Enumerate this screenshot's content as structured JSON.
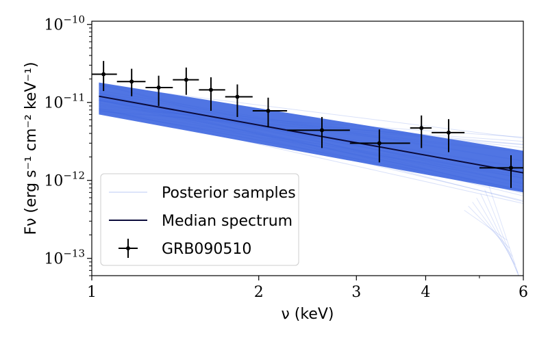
{
  "chart_data": {
    "type": "scatter",
    "title": "",
    "xlabel": "ν (keV)",
    "ylabel": "Fν (erg s⁻¹ cm⁻² keV⁻¹)",
    "xscale": "log",
    "yscale": "log",
    "xlim": [
      1,
      6
    ],
    "ylim": [
      6e-14,
      1.1e-10
    ],
    "x_ticks": [
      {
        "value": 1,
        "label": "1"
      },
      {
        "value": 2,
        "label": "2"
      },
      {
        "value": 3,
        "label": "3"
      },
      {
        "value": 4,
        "label": "4"
      },
      {
        "value": 6,
        "label": "6"
      }
    ],
    "y_ticks": [
      {
        "value": 1e-13,
        "base": "10",
        "exp": "−13"
      },
      {
        "value": 1e-12,
        "base": "10",
        "exp": "−12"
      },
      {
        "value": 1e-11,
        "base": "10",
        "exp": "−11"
      },
      {
        "value": 1e-10,
        "base": "10",
        "exp": "−10"
      }
    ],
    "grid": false,
    "legend_position": "lower-left",
    "colors": {
      "posterior": "#4169e1",
      "median": "#0a0a3a",
      "data": "#000000"
    },
    "series": [
      {
        "name": "Posterior samples",
        "kind": "band",
        "x": [
          1.03,
          6.0
        ],
        "y_upper": [
          1.8e-11,
          2.4e-12
        ],
        "y_lower": [
          7e-12,
          7e-13
        ]
      },
      {
        "name": "Median spectrum",
        "kind": "line",
        "x": [
          1.03,
          6.0
        ],
        "y": [
          1.2e-11,
          1.25e-12
        ]
      },
      {
        "name": "GRB090510",
        "kind": "errorbar",
        "points": [
          {
            "x": 1.05,
            "x_lo": 1.0,
            "x_hi": 1.11,
            "y": 2.3e-11,
            "y_lo": 1.4e-11,
            "y_hi": 3.4e-11
          },
          {
            "x": 1.18,
            "x_lo": 1.11,
            "x_hi": 1.25,
            "y": 1.85e-11,
            "y_lo": 1.2e-11,
            "y_hi": 2.7e-11
          },
          {
            "x": 1.32,
            "x_lo": 1.25,
            "x_hi": 1.4,
            "y": 1.55e-11,
            "y_lo": 9e-12,
            "y_hi": 2.2e-11
          },
          {
            "x": 1.48,
            "x_lo": 1.4,
            "x_hi": 1.56,
            "y": 1.95e-11,
            "y_lo": 1.25e-11,
            "y_hi": 2.8e-11
          },
          {
            "x": 1.64,
            "x_lo": 1.56,
            "x_hi": 1.74,
            "y": 1.45e-11,
            "y_lo": 7.8e-12,
            "y_hi": 2.1e-11
          },
          {
            "x": 1.83,
            "x_lo": 1.74,
            "x_hi": 1.95,
            "y": 1.18e-11,
            "y_lo": 6.5e-12,
            "y_hi": 1.7e-11
          },
          {
            "x": 2.08,
            "x_lo": 1.95,
            "x_hi": 2.25,
            "y": 7.8e-12,
            "y_lo": 4.8e-12,
            "y_hi": 1.15e-11
          },
          {
            "x": 2.6,
            "x_lo": 2.25,
            "x_hi": 2.92,
            "y": 4.4e-12,
            "y_lo": 2.6e-12,
            "y_hi": 6.5e-12
          },
          {
            "x": 3.3,
            "x_lo": 2.92,
            "x_hi": 3.75,
            "y": 3e-12,
            "y_lo": 1.7e-12,
            "y_hi": 4.5e-12
          },
          {
            "x": 3.93,
            "x_lo": 3.75,
            "x_hi": 4.1,
            "y": 4.7e-12,
            "y_lo": 2.6e-12,
            "y_hi": 6.8e-12
          },
          {
            "x": 4.4,
            "x_lo": 4.1,
            "x_hi": 4.7,
            "y": 4.1e-12,
            "y_lo": 2.3e-12,
            "y_hi": 6.1e-12
          },
          {
            "x": 5.7,
            "x_lo": 5.0,
            "x_hi": 6.0,
            "y": 1.45e-12,
            "y_lo": 8e-13,
            "y_hi": 2.1e-12
          }
        ]
      }
    ]
  }
}
